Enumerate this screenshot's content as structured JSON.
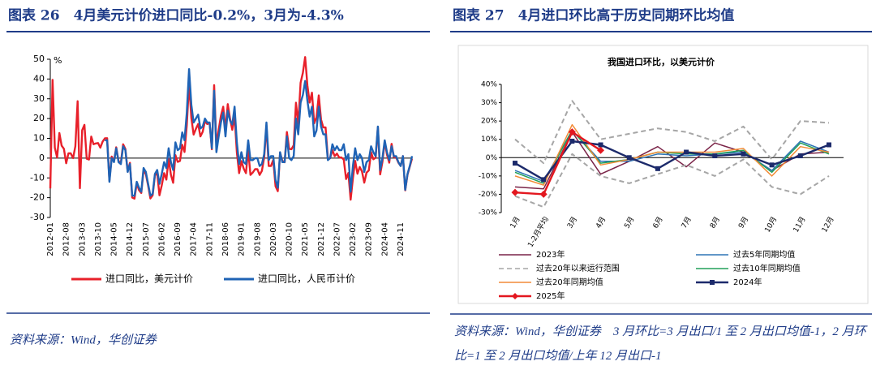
{
  "chart_data": [
    {
      "type": "line",
      "title": "图表 26　4月美元计价进口同比-0.2%，3月为-4.3%",
      "y_unit": "%",
      "source": "资料来源：Wind，华创证券",
      "categories": [
        "2012-01",
        null,
        null,
        null,
        null,
        null,
        null,
        "2012-08",
        null,
        null,
        null,
        null,
        null,
        null,
        "2013-03",
        null,
        null,
        null,
        null,
        null,
        null,
        "2013-10",
        null,
        null,
        null,
        null,
        null,
        null,
        "2014-05",
        null,
        null,
        null,
        null,
        null,
        null,
        "2014-12",
        null,
        null,
        null,
        null,
        null,
        null,
        "2015-07",
        null,
        null,
        null,
        null,
        null,
        null,
        "2016-02",
        null,
        null,
        null,
        null,
        null,
        null,
        "2016-09",
        null,
        null,
        null,
        null,
        null,
        null,
        "2017-04",
        null,
        null,
        null,
        null,
        null,
        null,
        "2017-11",
        null,
        null,
        null,
        null,
        null,
        null,
        "2018-06",
        null,
        null,
        null,
        null,
        null,
        null,
        "2019-01",
        null,
        null,
        null,
        null,
        null,
        null,
        "2019-08",
        null,
        null,
        null,
        null,
        null,
        null,
        "2020-03",
        null,
        null,
        null,
        null,
        null,
        null,
        "2020-10",
        null,
        null,
        null,
        null,
        null,
        null,
        "2021-05",
        null,
        null,
        null,
        null,
        null,
        null,
        "2021-12",
        null,
        null,
        null,
        null,
        null,
        null,
        "2022-07",
        null,
        null,
        null,
        null,
        null,
        null,
        "2023-02",
        null,
        null,
        null,
        null,
        null,
        null,
        "2023-09",
        null,
        null,
        null,
        null,
        null,
        null,
        "2024-04",
        null,
        null,
        null,
        null,
        null,
        null,
        "2024-11",
        null,
        null,
        null,
        null,
        null
      ],
      "ylim": [
        -30,
        50
      ],
      "yticks": [
        -30,
        -20,
        -10,
        0,
        10,
        20,
        30,
        40,
        50
      ],
      "series": [
        {
          "name": "进口同比，美元计价",
          "color": "#e8202a",
          "values": [
            -15.3,
            39.6,
            5.3,
            0.3,
            12.7,
            6.3,
            4.7,
            -2.6,
            2.4,
            2.4,
            0,
            6,
            28.8,
            -15.2,
            14.1,
            16.8,
            -0.3,
            -0.7,
            10.9,
            7,
            7.4,
            7.6,
            5.3,
            8.3,
            10,
            10.1,
            -11.3,
            0.8,
            -1.6,
            5.5,
            -1.6,
            -2.4,
            7,
            4.6,
            -6.7,
            -2.4,
            -19.9,
            -20.5,
            -12.7,
            -16.2,
            -17.6,
            -6.1,
            -8.1,
            -13.8,
            -20.4,
            -18.8,
            -8.7,
            -7.6,
            -18.8,
            -13.8,
            -7.6,
            -10.9,
            -0.4,
            -8.4,
            -12.5,
            1.5,
            -1.9,
            -1.4,
            6.7,
            3.1,
            16.7,
            38.1,
            20.3,
            11.9,
            14.8,
            17.2,
            11,
            13.3,
            18.7,
            17.2,
            17.7,
            4.5,
            36.9,
            6.3,
            14.4,
            21.5,
            26,
            14.1,
            27.3,
            20,
            14.3,
            21.4,
            3,
            -7.6,
            -1.5,
            -5.2,
            -7.6,
            4,
            -8.5,
            -7.3,
            -5.6,
            -5.6,
            -8.5,
            -6.4,
            0.3,
            16.3,
            -4,
            -4,
            -0.9,
            -14.2,
            -16.7,
            2.7,
            -1.4,
            -2.1,
            13.2,
            4.7,
            4.5,
            6.5,
            28,
            17.3,
            38.1,
            43.1,
            51.1,
            36.7,
            28.1,
            33.1,
            17.6,
            20.6,
            31.7,
            19.5,
            15.5,
            15.5,
            -0.1,
            0,
            4.1,
            1,
            2.3,
            0.3,
            0.3,
            -0.7,
            -10.6,
            -7.5,
            -21,
            -10.2,
            -1.4,
            -7.9,
            -4.5,
            -6.8,
            -12.4,
            -7.3,
            -6.2,
            3,
            -0.6,
            0.2,
            15.5,
            -8.2,
            -1.9,
            8.4,
            1.8,
            -2.3,
            7.2,
            0.5,
            0.3,
            -2.3,
            -3.9,
            1,
            -16.3,
            -8.4,
            -4.3,
            -0.2
          ]
        },
        {
          "name": "进口同比，人民币计价",
          "color": "#1f63b5",
          "values": [
            null,
            null,
            null,
            null,
            null,
            null,
            null,
            null,
            null,
            null,
            null,
            null,
            null,
            null,
            null,
            null,
            null,
            null,
            null,
            null,
            null,
            null,
            null,
            null,
            9,
            9,
            -12,
            0,
            -2,
            5,
            -2,
            -3,
            6,
            4,
            -7,
            -3,
            -19,
            -19,
            -12,
            -15,
            -17,
            -5,
            -7,
            -13,
            -19,
            -18,
            -8,
            -6,
            -13,
            -8,
            -2,
            -5,
            5,
            -2,
            -6,
            8,
            4,
            5,
            13,
            9,
            23,
            45,
            27,
            18,
            20,
            22,
            15,
            16,
            20,
            18,
            18,
            5,
            34,
            3,
            11,
            18,
            23,
            11,
            24,
            19,
            17,
            26,
            8,
            -3,
            3,
            -2,
            -3,
            9,
            -1,
            -1,
            0,
            0,
            -4,
            -3,
            2,
            18,
            -1,
            1,
            1,
            -11,
            -15,
            3,
            -2,
            -2,
            11,
            0,
            -1,
            1,
            20,
            12,
            28,
            32,
            39,
            29,
            21,
            26,
            11,
            14,
            26,
            16,
            12,
            12,
            -1,
            0,
            7,
            4,
            6,
            4,
            4,
            7,
            -1,
            2,
            -17,
            -4,
            5,
            -1,
            2,
            0,
            -7,
            -2,
            -1,
            6,
            3,
            1,
            16,
            -6,
            0,
            9,
            3,
            -1,
            6,
            1,
            1,
            -2,
            -4,
            1,
            -16,
            -8,
            -4,
            1
          ]
        }
      ]
    },
    {
      "type": "line",
      "title": "图表 27　4月进口环比高于历史同期环比均值",
      "subtitle": "我国进口环比，以美元计价",
      "source": "资料来源：Wind，华创证券　3 月环比=3 月出口/1 至 2 月出口均值-1，2 月环比=1 至 2 月出口均值/上年 12 月出口-1",
      "categories": [
        "1月",
        "1-2月平均",
        "3月",
        "4月",
        "5月",
        "6月",
        "7月",
        "8月",
        "9月",
        "10月",
        "11月",
        "12月"
      ],
      "ylim": [
        -30,
        40
      ],
      "yticks": [
        {
          "value": -30,
          "label": "-30%"
        },
        {
          "value": -20,
          "label": "-20%"
        },
        {
          "value": -10,
          "label": "-10%"
        },
        {
          "value": 0,
          "label": "0%"
        },
        {
          "value": 10,
          "label": "10%"
        },
        {
          "value": 20,
          "label": "20%"
        },
        {
          "value": 30,
          "label": "30%"
        },
        {
          "value": 40,
          "label": "40%"
        }
      ],
      "series": [
        {
          "name": "2023年",
          "color": "#7a2448",
          "values": [
            -16,
            -17,
            14,
            -9,
            -2,
            6,
            -5,
            8,
            3,
            -7,
            2,
            3
          ]
        },
        {
          "name": "过去5年同期均值",
          "color": "#2e75b6",
          "values": [
            -7,
            -13,
            15,
            -2,
            -2,
            2,
            1,
            2,
            3,
            -7,
            9,
            3
          ]
        },
        {
          "name": "过去20年以来运行范围",
          "color": "#a6a6a6",
          "dashed": true,
          "high": [
            10,
            -3,
            31,
            10,
            13,
            16,
            14,
            9,
            17,
            -1,
            20,
            19
          ],
          "low": [
            -21,
            -27,
            2,
            -10,
            -14,
            -9,
            -4,
            -10,
            -1,
            -16,
            -20,
            -10
          ]
        },
        {
          "name": "过去10年同期均值",
          "color": "#22a05a",
          "values": [
            -8,
            -14,
            15,
            -3,
            -1,
            3,
            2,
            2,
            4,
            -8,
            8,
            2
          ]
        },
        {
          "name": "过去20年同期均值",
          "color": "#f28c38",
          "values": [
            -10,
            -15,
            18,
            -4,
            -1,
            3,
            3,
            3,
            5,
            -10,
            6,
            3
          ]
        },
        {
          "name": "2024年",
          "color": "#1c2a6b",
          "marker": "square",
          "values": [
            -3,
            -12,
            9,
            7,
            0,
            -6,
            3,
            1,
            2,
            -4,
            1,
            7
          ]
        },
        {
          "name": "2025年",
          "color": "#e3171f",
          "marker": "diamond",
          "values": [
            -19,
            -20,
            14,
            4,
            null,
            null,
            null,
            null,
            null,
            null,
            null,
            null
          ]
        }
      ]
    }
  ]
}
